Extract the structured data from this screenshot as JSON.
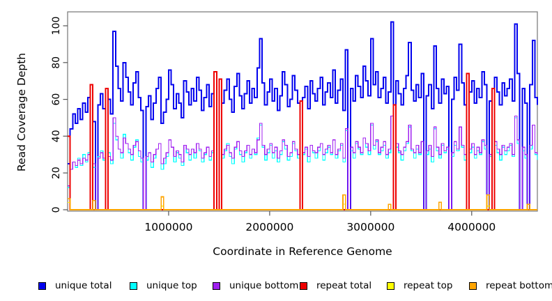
{
  "chart_data": {
    "type": "line",
    "line_style": "step",
    "title": "",
    "xlabel": "Coordinate in Reference Genome",
    "ylabel": "Read Coverage Depth",
    "x_axis": {
      "ticks": [
        1000000,
        2000000,
        3000000,
        4000000
      ],
      "tick_labels": [
        "1000000",
        "2000000",
        "3000000",
        "4000000"
      ],
      "xlim": [
        0,
        4650000
      ]
    },
    "y_axis": {
      "ticks": [
        0,
        20,
        40,
        60,
        80,
        100
      ],
      "tick_labels": [
        "0",
        "20",
        "40",
        "60",
        "80",
        "100"
      ],
      "ylim": [
        0,
        102
      ]
    },
    "grid": false,
    "legend_position": "bottom",
    "bin_start": 0,
    "bin_step": 25000,
    "n_bins": 187,
    "series": [
      {
        "name": "unique total",
        "color": "#0000EE",
        "lwd": 2,
        "values": [
          25,
          44,
          52,
          47,
          55,
          49,
          58,
          53,
          61,
          0,
          48,
          0,
          57,
          63,
          55,
          0,
          60,
          52,
          97,
          78,
          66,
          59,
          80,
          72,
          64,
          57,
          69,
          75,
          61,
          54,
          0,
          56,
          62,
          49,
          58,
          66,
          72,
          47,
          53,
          60,
          76,
          68,
          55,
          63,
          58,
          50,
          70,
          64,
          57,
          66,
          59,
          72,
          65,
          54,
          61,
          68,
          56,
          63,
          0,
          0,
          0,
          58,
          65,
          71,
          60,
          53,
          67,
          74,
          62,
          55,
          63,
          70,
          58,
          66,
          61,
          77,
          93,
          69,
          57,
          64,
          71,
          59,
          66,
          54,
          62,
          75,
          68,
          56,
          60,
          73,
          65,
          58,
          0,
          61,
          67,
          55,
          70,
          63,
          59,
          66,
          72,
          57,
          64,
          69,
          61,
          76,
          58,
          65,
          71,
          54,
          87,
          0,
          66,
          59,
          73,
          67,
          61,
          78,
          70,
          62,
          93,
          68,
          75,
          61,
          66,
          72,
          58,
          64,
          102,
          0,
          70,
          63,
          57,
          66,
          73,
          91,
          65,
          59,
          68,
          61,
          74,
          0,
          62,
          68,
          55,
          89,
          66,
          58,
          71,
          63,
          67,
          0,
          60,
          72,
          65,
          90,
          69,
          57,
          0,
          64,
          70,
          58,
          66,
          61,
          75,
          68,
          0,
          59,
          0,
          72,
          64,
          57,
          69,
          62,
          66,
          71,
          59,
          101,
          74,
          0,
          66,
          58,
          0,
          68,
          92,
          61,
          57
        ]
      },
      {
        "name": "unique top",
        "color": "#00FFFF",
        "lwd": 1.2,
        "values": [
          12,
          22,
          26,
          23,
          28,
          24,
          30,
          26,
          31,
          0,
          23,
          0,
          29,
          32,
          27,
          0,
          31,
          25,
          47,
          38,
          33,
          28,
          41,
          36,
          31,
          27,
          34,
          38,
          29,
          26,
          0,
          27,
          31,
          23,
          28,
          33,
          36,
          22,
          25,
          29,
          38,
          34,
          26,
          31,
          28,
          24,
          35,
          31,
          27,
          33,
          28,
          36,
          32,
          26,
          30,
          34,
          27,
          31,
          0,
          0,
          0,
          28,
          32,
          36,
          29,
          25,
          33,
          37,
          30,
          26,
          31,
          35,
          28,
          33,
          30,
          39,
          46,
          34,
          27,
          31,
          35,
          28,
          32,
          26,
          30,
          37,
          33,
          27,
          29,
          36,
          32,
          28,
          0,
          30,
          33,
          26,
          35,
          31,
          28,
          32,
          36,
          27,
          31,
          34,
          30,
          38,
          28,
          32,
          35,
          26,
          43,
          0,
          32,
          28,
          36,
          33,
          30,
          39,
          34,
          30,
          46,
          33,
          37,
          30,
          32,
          35,
          28,
          31,
          51,
          0,
          34,
          31,
          27,
          32,
          36,
          45,
          32,
          28,
          33,
          30,
          37,
          0,
          30,
          33,
          26,
          44,
          32,
          28,
          35,
          31,
          33,
          0,
          29,
          35,
          32,
          45,
          34,
          27,
          0,
          31,
          34,
          28,
          32,
          30,
          37,
          33,
          0,
          29,
          0,
          35,
          31,
          27,
          34,
          30,
          32,
          35,
          29,
          50,
          36,
          0,
          32,
          28,
          0,
          33,
          46,
          30,
          27
        ]
      },
      {
        "name": "unique bottom",
        "color": "#A020F0",
        "lwd": 1.2,
        "values": [
          13,
          22,
          26,
          24,
          27,
          25,
          28,
          27,
          30,
          0,
          25,
          0,
          28,
          31,
          28,
          0,
          29,
          27,
          50,
          40,
          33,
          31,
          39,
          36,
          33,
          30,
          35,
          37,
          32,
          28,
          0,
          29,
          31,
          26,
          30,
          33,
          36,
          25,
          28,
          31,
          38,
          34,
          29,
          32,
          30,
          26,
          35,
          33,
          30,
          33,
          31,
          36,
          33,
          28,
          31,
          34,
          29,
          32,
          0,
          0,
          0,
          30,
          33,
          35,
          31,
          28,
          34,
          37,
          32,
          29,
          32,
          35,
          30,
          33,
          31,
          38,
          47,
          35,
          30,
          33,
          36,
          31,
          34,
          28,
          32,
          38,
          35,
          29,
          31,
          37,
          33,
          30,
          0,
          31,
          34,
          29,
          35,
          32,
          31,
          34,
          36,
          30,
          33,
          35,
          31,
          38,
          30,
          33,
          36,
          28,
          44,
          0,
          34,
          31,
          37,
          34,
          31,
          39,
          36,
          32,
          47,
          35,
          38,
          31,
          34,
          37,
          30,
          33,
          51,
          0,
          36,
          32,
          30,
          34,
          37,
          46,
          33,
          31,
          35,
          31,
          37,
          0,
          32,
          35,
          29,
          45,
          34,
          30,
          36,
          32,
          34,
          0,
          31,
          37,
          33,
          45,
          35,
          30,
          0,
          33,
          36,
          30,
          34,
          31,
          38,
          35,
          0,
          30,
          0,
          37,
          33,
          30,
          35,
          32,
          34,
          36,
          30,
          51,
          38,
          0,
          34,
          30,
          0,
          35,
          46,
          31,
          30
        ]
      },
      {
        "name": "repeat total",
        "color": "#EE0000",
        "lwd": 2,
        "base": 0,
        "spikes": {
          "0": 40,
          "9": 68,
          "15": 66,
          "58": 75,
          "60": 71,
          "92": 59,
          "129": 57,
          "158": 74,
          "168": 66
        }
      },
      {
        "name": "repeat top",
        "color": "#FFFF00",
        "lwd": 1.2,
        "base": 0,
        "spikes": {
          "0": 4,
          "37": 2,
          "109": 3,
          "166": 2
        }
      },
      {
        "name": "repeat bottom",
        "color": "#FFA500",
        "lwd": 1.6,
        "base": 0,
        "spikes": {
          "0": 6,
          "10": 5,
          "37": 7,
          "109": 8,
          "127": 3,
          "147": 4,
          "166": 8,
          "182": 3
        }
      }
    ]
  },
  "legend": {
    "items": [
      {
        "label": "unique total",
        "color": "#0000EE"
      },
      {
        "label": "unique top",
        "color": "#00FFFF"
      },
      {
        "label": "unique bottom",
        "color": "#A020F0"
      },
      {
        "label": "repeat total",
        "color": "#EE0000"
      },
      {
        "label": "repeat top",
        "color": "#FFFF00"
      },
      {
        "label": "repeat bottom",
        "color": "#FFA500"
      }
    ]
  },
  "frame": {
    "box_color": "#808080",
    "tick_color": "#555555",
    "text_color": "#000000"
  }
}
